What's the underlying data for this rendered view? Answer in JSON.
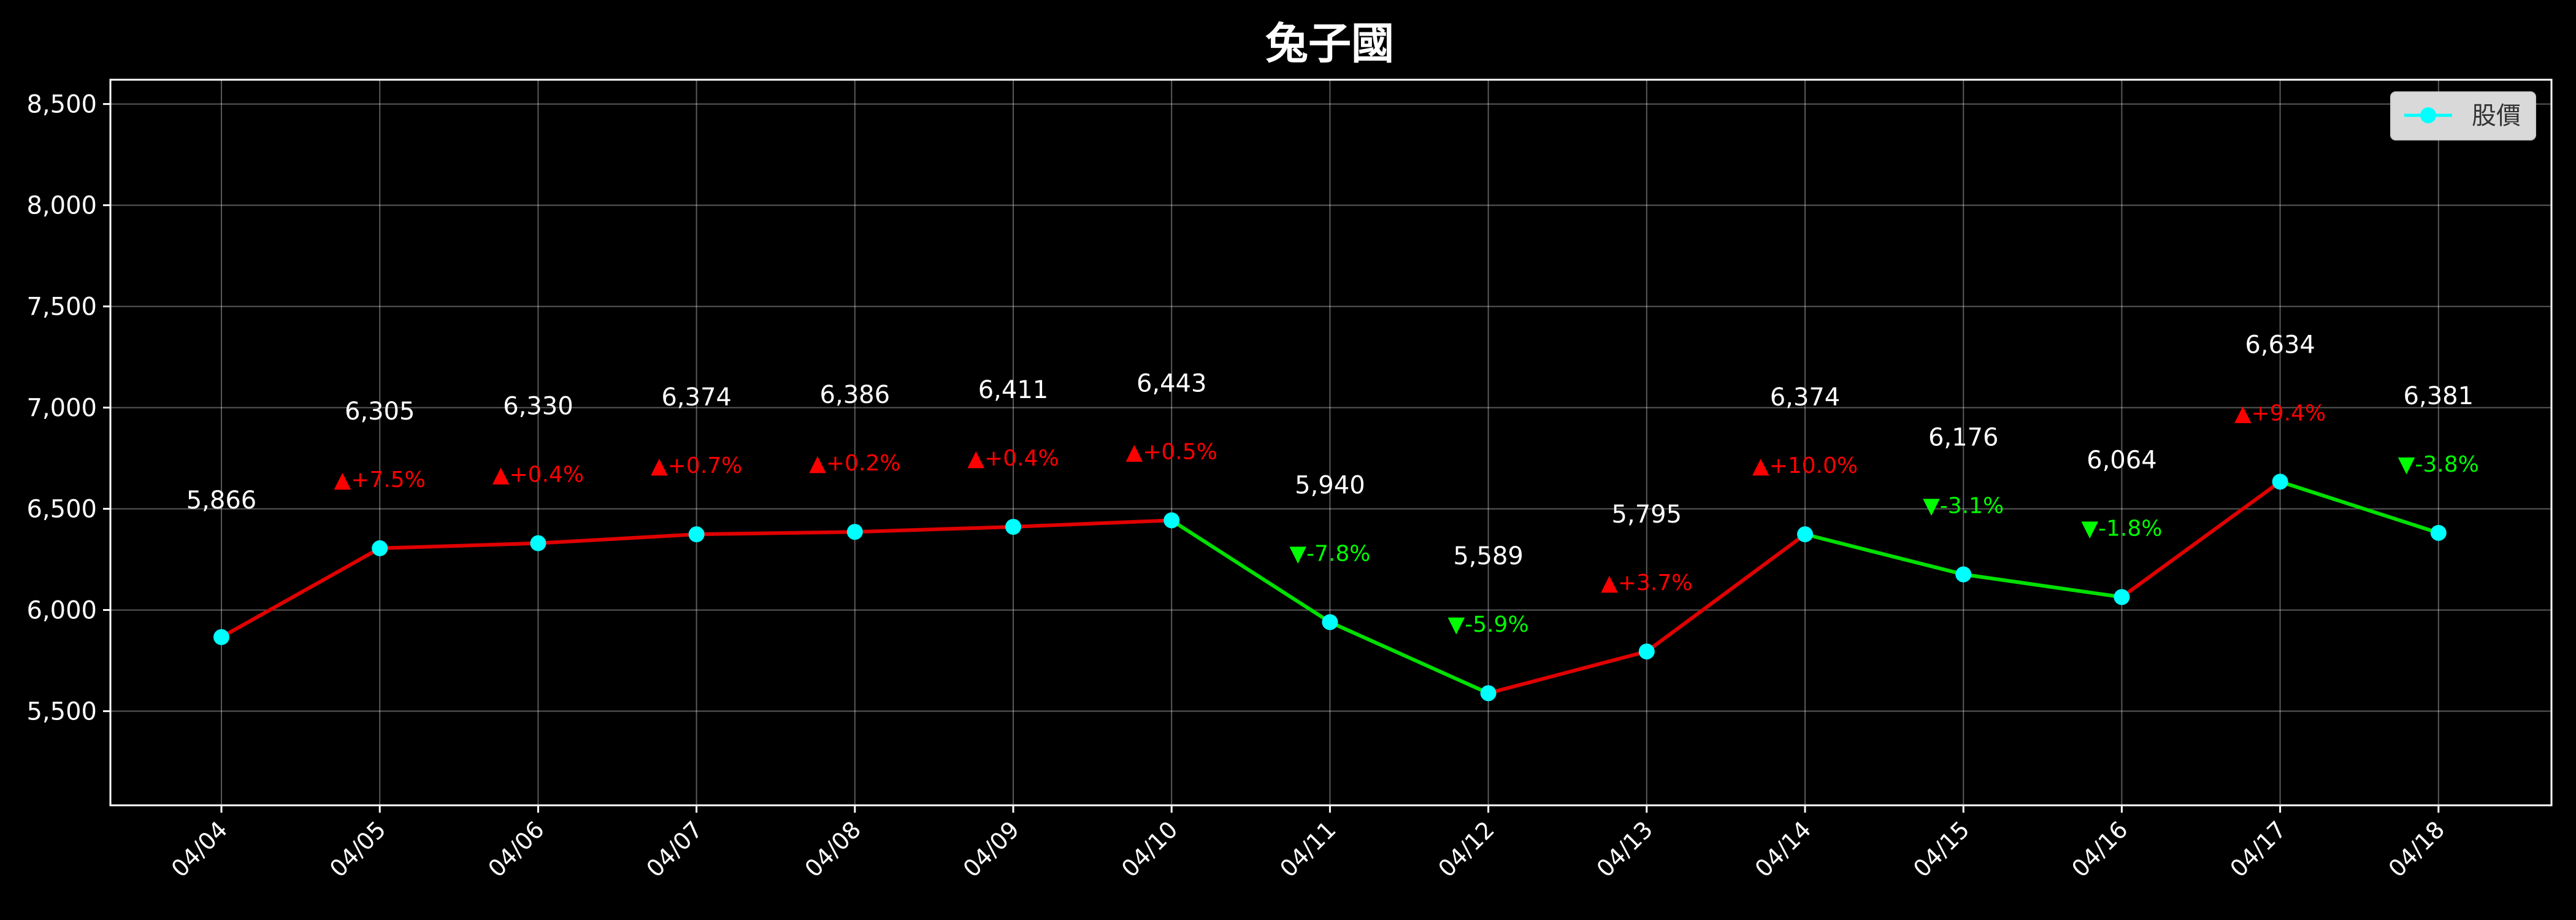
{
  "chart_data": {
    "type": "line",
    "title": "兔子國",
    "xlabel": "",
    "ylabel": "",
    "categories": [
      "04/04",
      "04/05",
      "04/06",
      "04/07",
      "04/08",
      "04/09",
      "04/10",
      "04/11",
      "04/12",
      "04/13",
      "04/14",
      "04/15",
      "04/16",
      "04/17",
      "04/18"
    ],
    "series": [
      {
        "name": "股價",
        "values": [
          5866,
          6305,
          6330,
          6374,
          6386,
          6411,
          6443,
          5940,
          5589,
          5795,
          6374,
          6176,
          6064,
          6634,
          6381
        ],
        "marker_color": "#00ffff"
      }
    ],
    "value_labels": [
      "5,866",
      "6,305",
      "6,330",
      "6,374",
      "6,386",
      "6,411",
      "6,443",
      "5,940",
      "5,589",
      "5,795",
      "6,374",
      "6,176",
      "6,064",
      "6,634",
      "6,381"
    ],
    "change_labels": [
      "",
      "▲+7.5%",
      "▲+0.4%",
      "▲+0.7%",
      "▲+0.2%",
      "▲+0.4%",
      "▲+0.5%",
      "▼-7.8%",
      "▼-5.9%",
      "▲+3.7%",
      "▲+10.0%",
      "▼-3.1%",
      "▼-1.8%",
      "▲+9.4%",
      "▼-3.8%"
    ],
    "y_ticks": [
      5500,
      6000,
      6500,
      7000,
      7500,
      8000,
      8500
    ],
    "y_tick_labels": [
      "5,500",
      "6,000",
      "6,500",
      "7,000",
      "7,500",
      "8,000",
      "8,500"
    ],
    "ylim": [
      5035,
      8620
    ],
    "grid": true,
    "legend_position": "top-right",
    "colors": {
      "up": "#ff0000",
      "down": "#00ff00",
      "up_line": "#e00000",
      "down_line": "#00e000",
      "marker": "#00ffff"
    }
  }
}
